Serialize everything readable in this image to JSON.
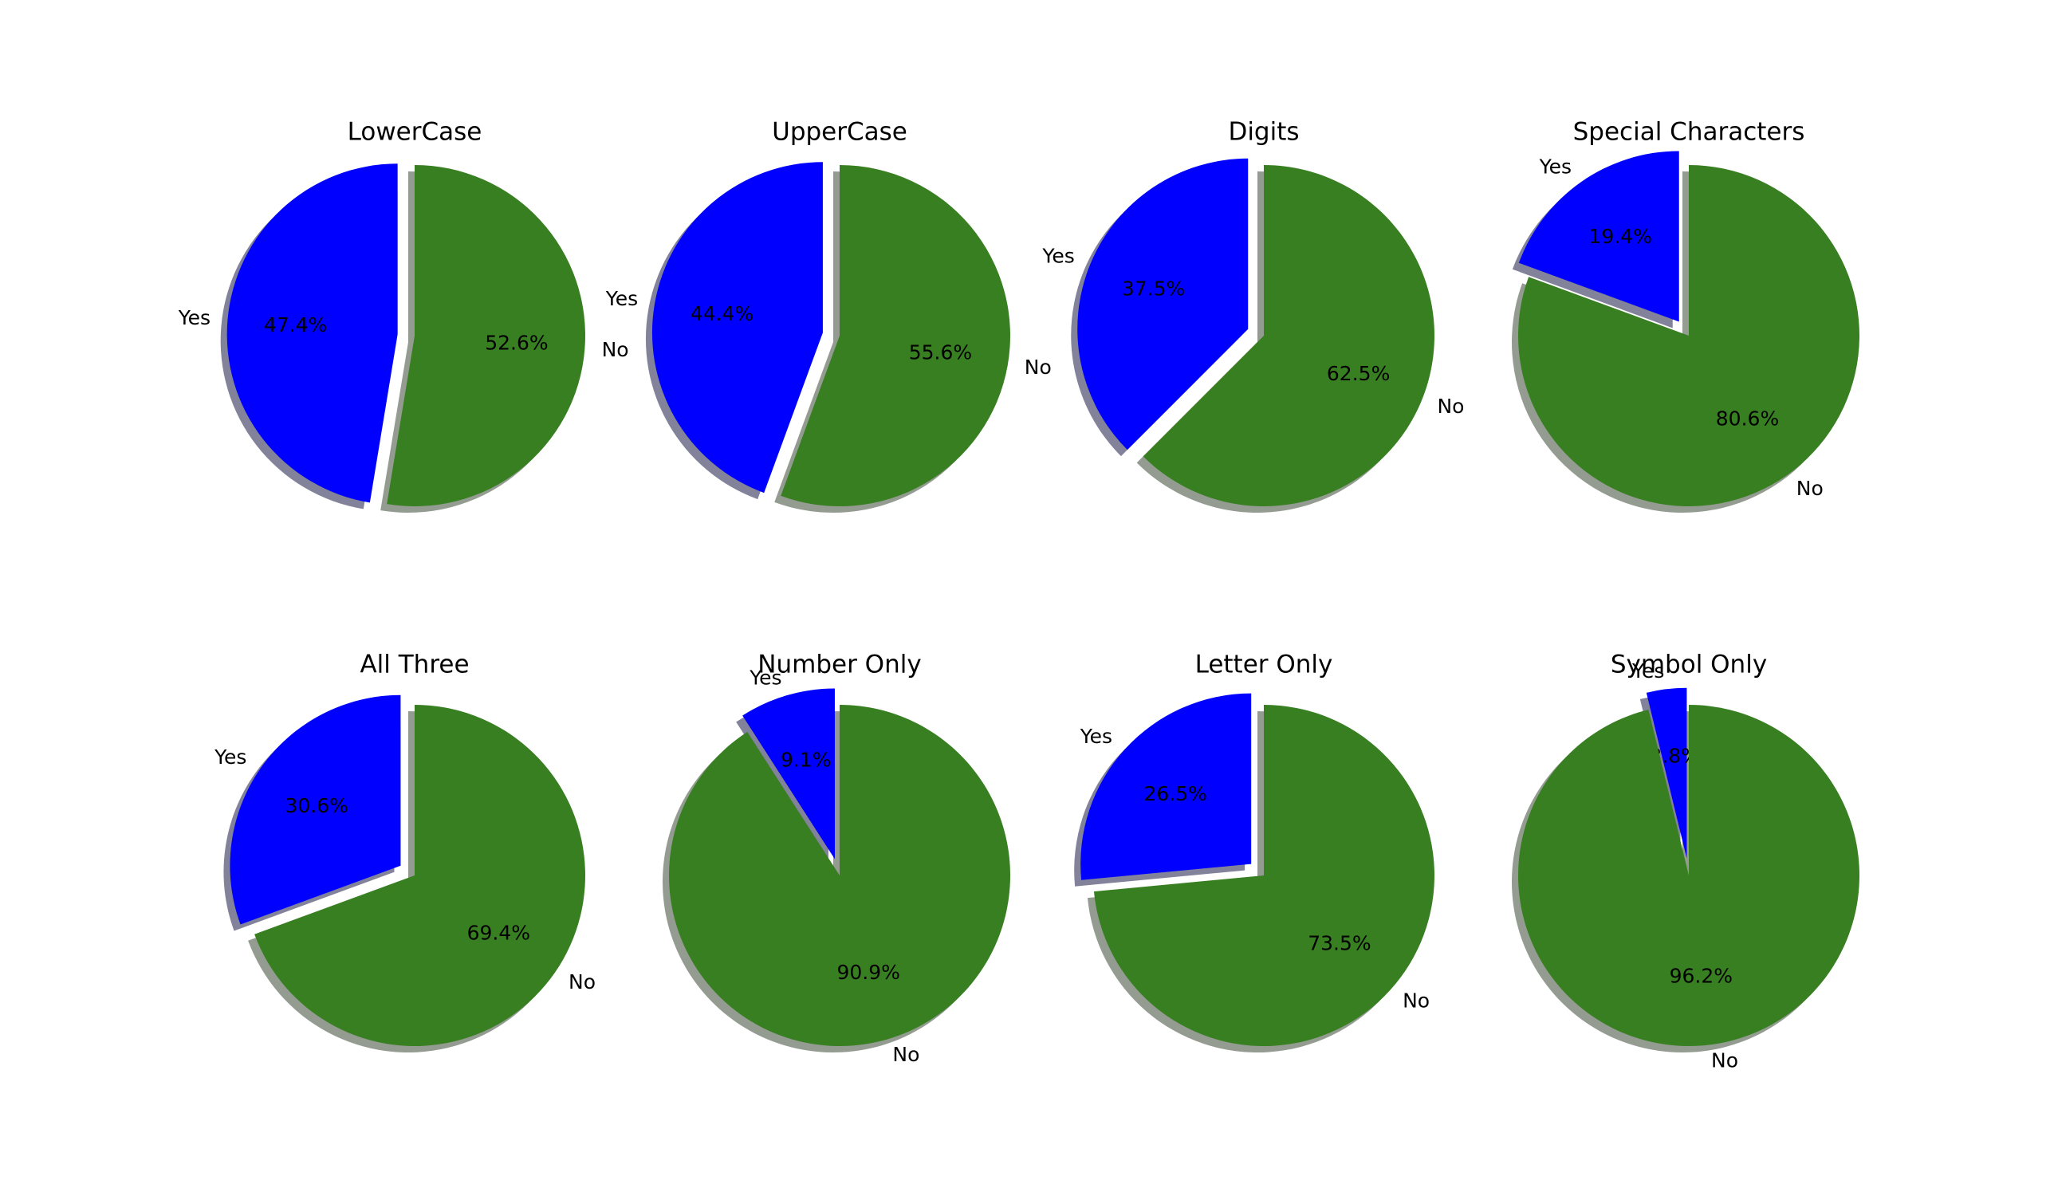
{
  "chart_data": [
    {
      "type": "pie",
      "title": "LowerCase",
      "categories": [
        "Yes",
        "No"
      ],
      "values": [
        47.4,
        52.6
      ],
      "value_labels": [
        "47.4%",
        "52.6%"
      ],
      "colors": [
        "#0000ff",
        "#387f22"
      ],
      "explode": [
        0.1,
        0
      ],
      "shadow": true
    },
    {
      "type": "pie",
      "title": "UpperCase",
      "categories": [
        "Yes",
        "No"
      ],
      "values": [
        44.4,
        55.6
      ],
      "value_labels": [
        "44.4%",
        "55.6%"
      ],
      "colors": [
        "#0000ff",
        "#387f22"
      ],
      "explode": [
        0.1,
        0
      ],
      "shadow": true
    },
    {
      "type": "pie",
      "title": "Digits",
      "categories": [
        "Yes",
        "No"
      ],
      "values": [
        37.5,
        62.5
      ],
      "value_labels": [
        "37.5%",
        "62.5%"
      ],
      "colors": [
        "#0000ff",
        "#387f22"
      ],
      "explode": [
        0.1,
        0
      ],
      "shadow": true
    },
    {
      "type": "pie",
      "title": "Special Characters",
      "categories": [
        "Yes",
        "No"
      ],
      "values": [
        19.4,
        80.6
      ],
      "value_labels": [
        "19.4%",
        "80.6%"
      ],
      "colors": [
        "#0000ff",
        "#387f22"
      ],
      "explode": [
        0.1,
        0
      ],
      "shadow": true
    },
    {
      "type": "pie",
      "title": "All Three",
      "categories": [
        "Yes",
        "No"
      ],
      "values": [
        30.6,
        69.4
      ],
      "value_labels": [
        "30.6%",
        "69.4%"
      ],
      "colors": [
        "#0000ff",
        "#387f22"
      ],
      "explode": [
        0.1,
        0
      ],
      "shadow": true
    },
    {
      "type": "pie",
      "title": "Number Only",
      "categories": [
        "Yes",
        "No"
      ],
      "values": [
        9.1,
        90.9
      ],
      "value_labels": [
        "9.1%",
        "90.9%"
      ],
      "colors": [
        "#0000ff",
        "#387f22"
      ],
      "explode": [
        0.1,
        0
      ],
      "shadow": true
    },
    {
      "type": "pie",
      "title": "Letter Only",
      "categories": [
        "Yes",
        "No"
      ],
      "values": [
        26.5,
        73.5
      ],
      "value_labels": [
        "26.5%",
        "73.5%"
      ],
      "colors": [
        "#0000ff",
        "#387f22"
      ],
      "explode": [
        0.1,
        0
      ],
      "shadow": true
    },
    {
      "type": "pie",
      "title": "Symbol Only",
      "categories": [
        "Yes",
        "No"
      ],
      "values": [
        3.8,
        96.2
      ],
      "value_labels": [
        "3.8%",
        "96.2%"
      ],
      "colors": [
        "#0000ff",
        "#387f22"
      ],
      "explode": [
        0.1,
        0
      ],
      "shadow": true
    }
  ]
}
